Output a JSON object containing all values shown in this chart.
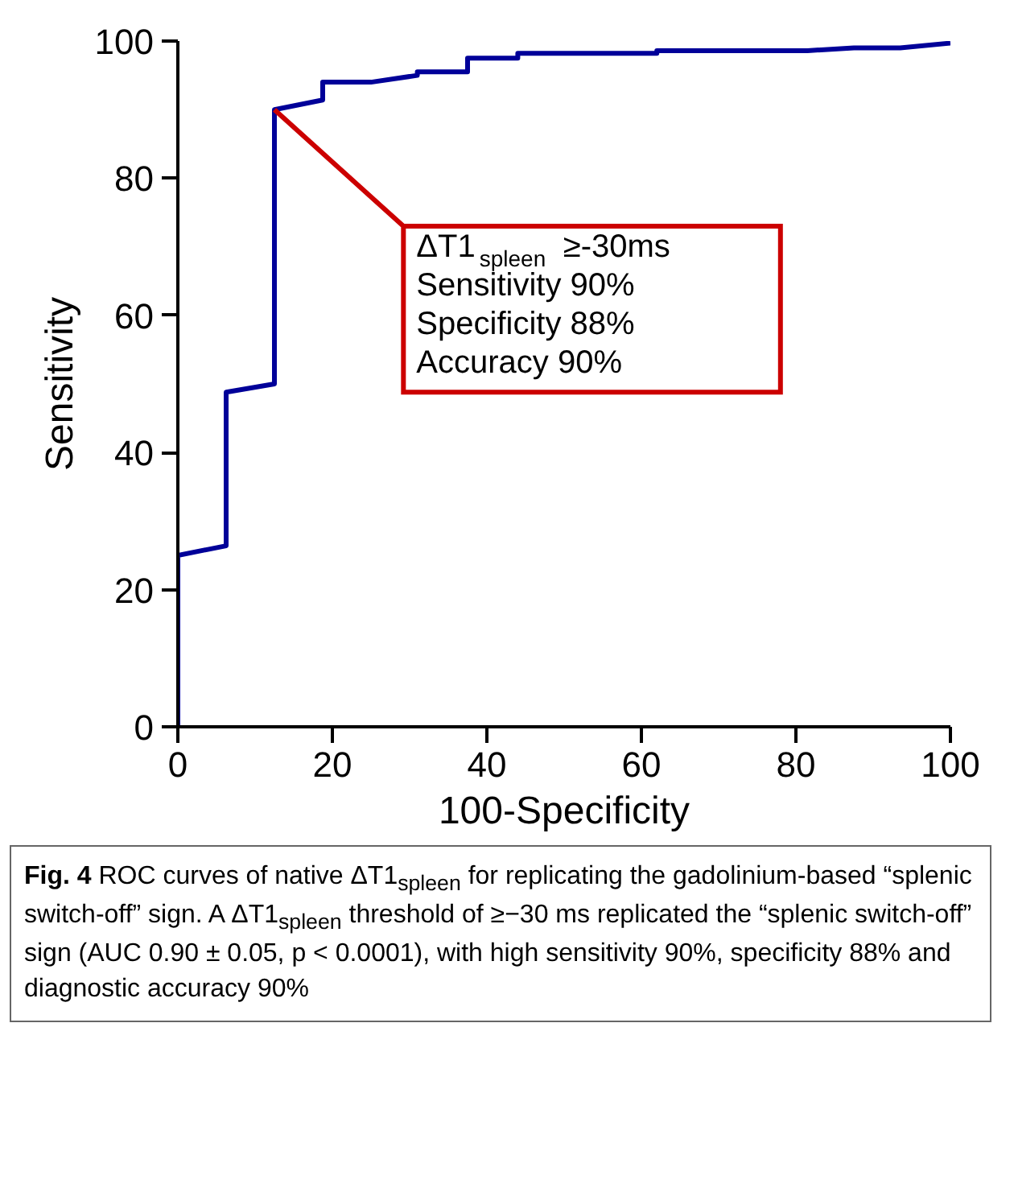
{
  "chart_data": {
    "type": "line",
    "xlabel": "100-Specificity",
    "ylabel": "Sensitivity",
    "series": [
      {
        "color": "#000099",
        "x": [
          0,
          0,
          6.25,
          6.25,
          12.5,
          12.5,
          18.75,
          18.75,
          25,
          31,
          31,
          37.5,
          37.5,
          44,
          44,
          62,
          62,
          81.5,
          87.5,
          93.5,
          100
        ],
        "values": [
          0,
          25,
          26.4,
          48.8,
          50,
          90,
          91.4,
          94,
          94,
          95,
          95.5,
          95.5,
          97.5,
          97.5,
          98.2,
          98.2,
          98.6,
          98.6,
          99,
          99,
          99.7
        ]
      }
    ],
    "xlim": [
      0,
      100
    ],
    "ylim": [
      0,
      100
    ],
    "xticks": [
      0,
      20,
      40,
      60,
      80,
      100
    ],
    "yticks": [
      0,
      20,
      40,
      60,
      80,
      100
    ],
    "grid": false,
    "marker": "none",
    "line_style": "solid",
    "annotations": [
      {
        "text": "ΔT1$_{spleen}$ ≥-30ms\nSensitivity  90%\nSpecificity  88%\nAccuracy   90%",
        "x": 12.5,
        "y": 90
      },
      "Fig. 4 ROC curves of native ΔT1$_{spleen}$ for replicating the gadolinium-based “splenic switch-off” sign. A ΔT1$_{spleen}$ threshold of ≥−30 ms replicated the “splenic switch-off” sign (AUC 0.90 ± 0.05, p < 0.0001), with high sensitivity 90%, specificity 88% and diagnostic accuracy 90%"
    ]
  }
}
